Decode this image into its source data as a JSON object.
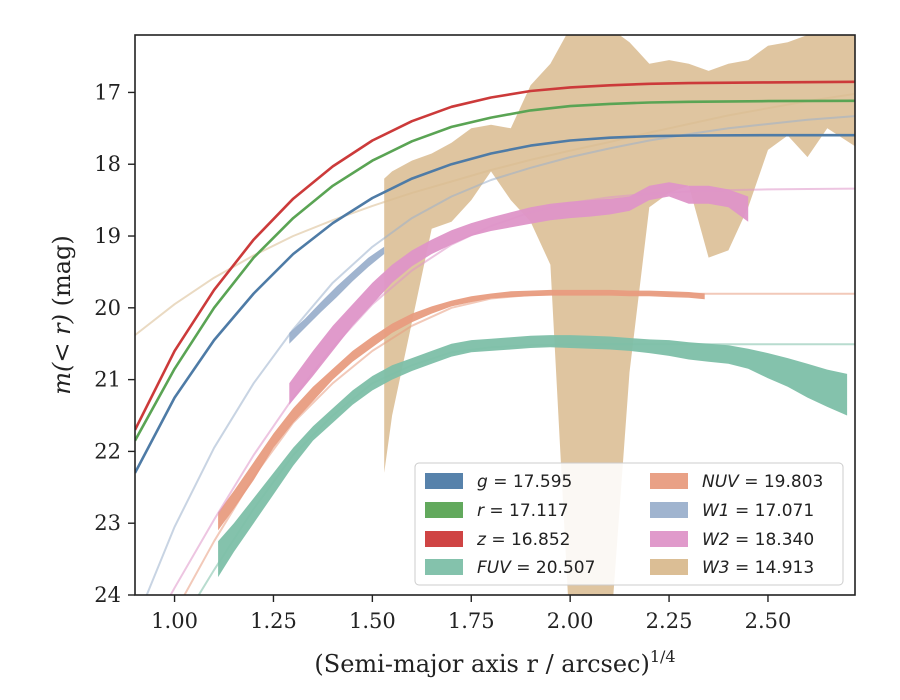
{
  "chart_data": {
    "type": "line",
    "xlabel": "(Semi-major axis r / arcsec)",
    "xlabel_exponent": "1/4",
    "ylabel_prefix": "m(< r)",
    "ylabel_suffix": " (mag)",
    "xlim": [
      0.9,
      2.72
    ],
    "ylim": [
      24,
      16.2
    ],
    "y_inverted": true,
    "x_ticks": [
      1.0,
      1.25,
      1.5,
      1.75,
      2.0,
      2.25,
      2.5
    ],
    "x_tick_labels": [
      "1.00",
      "1.25",
      "1.50",
      "1.75",
      "2.00",
      "2.25",
      "2.50"
    ],
    "y_ticks": [
      17,
      18,
      19,
      20,
      21,
      22,
      23,
      24
    ],
    "y_tick_labels": [
      "17",
      "18",
      "19",
      "20",
      "21",
      "22",
      "23",
      "24"
    ],
    "grid": false,
    "legend_placement": "lower-right",
    "legend_columns": 2,
    "series": [
      {
        "key": "W3",
        "name": "W3 = 14.913",
        "color": "#d9bb8f",
        "model": [
          [
            0.9,
            20.38
          ],
          [
            1.0,
            19.95
          ],
          [
            1.1,
            19.58
          ],
          [
            1.2,
            19.27
          ],
          [
            1.3,
            19.0
          ],
          [
            1.4,
            18.78
          ],
          [
            1.5,
            18.58
          ],
          [
            1.6,
            18.4
          ],
          [
            1.7,
            18.24
          ],
          [
            1.8,
            18.08
          ],
          [
            1.9,
            17.94
          ],
          [
            2.0,
            17.81
          ],
          [
            2.1,
            17.69
          ],
          [
            2.2,
            17.56
          ],
          [
            2.3,
            17.44
          ],
          [
            2.4,
            17.32
          ],
          [
            2.5,
            17.22
          ],
          [
            2.6,
            17.12
          ],
          [
            2.72,
            17.02
          ]
        ],
        "band_x": [
          1.53,
          1.55,
          1.6,
          1.65,
          1.7,
          1.75,
          1.8,
          1.85,
          1.9,
          1.95,
          2.0,
          2.05,
          2.1,
          2.15,
          2.2,
          2.25,
          2.3,
          2.35,
          2.4,
          2.45,
          2.5,
          2.55,
          2.6,
          2.65,
          2.72
        ],
        "band_hi": [
          18.2,
          18.1,
          17.95,
          17.85,
          17.7,
          17.5,
          17.45,
          17.5,
          16.9,
          16.6,
          16.1,
          16.1,
          16.1,
          16.3,
          16.6,
          16.55,
          16.6,
          16.7,
          16.6,
          16.55,
          16.35,
          16.3,
          16.2,
          16.2,
          16.15
        ],
        "band_lo": [
          22.3,
          21.5,
          20.2,
          18.9,
          18.8,
          18.5,
          18.1,
          18.5,
          18.8,
          19.4,
          24.6,
          24.8,
          24.7,
          20.9,
          18.6,
          18.4,
          18.3,
          19.3,
          19.2,
          18.6,
          17.8,
          17.6,
          17.9,
          17.5,
          17.75
        ]
      },
      {
        "key": "FUV",
        "name": "FUV = 20.507",
        "color": "#7dbfa8",
        "model": [
          [
            0.9,
            25.2
          ],
          [
            1.0,
            24.55
          ],
          [
            1.1,
            23.65
          ],
          [
            1.2,
            22.8
          ],
          [
            1.3,
            22.05
          ],
          [
            1.4,
            21.5
          ],
          [
            1.5,
            21.05
          ],
          [
            1.6,
            20.8
          ],
          [
            1.7,
            20.62
          ],
          [
            1.8,
            20.55
          ],
          [
            1.9,
            20.52
          ],
          [
            2.0,
            20.51
          ],
          [
            2.2,
            20.507
          ],
          [
            2.4,
            20.507
          ],
          [
            2.72,
            20.507
          ]
        ],
        "band_x": [
          1.11,
          1.15,
          1.2,
          1.25,
          1.3,
          1.35,
          1.4,
          1.45,
          1.5,
          1.55,
          1.6,
          1.65,
          1.7,
          1.75,
          1.8,
          1.85,
          1.9,
          1.95,
          2.0,
          2.05,
          2.1,
          2.15,
          2.2,
          2.25,
          2.3,
          2.35,
          2.4,
          2.45,
          2.5,
          2.55,
          2.6,
          2.65,
          2.7
        ],
        "band_hi": [
          23.25,
          23.0,
          22.65,
          22.3,
          21.95,
          21.65,
          21.4,
          21.15,
          20.95,
          20.8,
          20.7,
          20.6,
          20.5,
          20.45,
          20.43,
          20.41,
          20.39,
          20.38,
          20.38,
          20.39,
          20.4,
          20.42,
          20.44,
          20.45,
          20.48,
          20.5,
          20.52,
          20.57,
          20.63,
          20.7,
          20.78,
          20.86,
          20.92
        ],
        "band_lo": [
          23.75,
          23.4,
          23.0,
          22.6,
          22.2,
          21.85,
          21.6,
          21.35,
          21.15,
          21.0,
          20.88,
          20.78,
          20.68,
          20.62,
          20.6,
          20.58,
          20.56,
          20.55,
          20.56,
          20.57,
          20.58,
          20.6,
          20.63,
          20.67,
          20.72,
          20.75,
          20.78,
          20.85,
          20.98,
          21.1,
          21.25,
          21.38,
          21.5
        ]
      },
      {
        "key": "NUV",
        "name": "NUV = 19.803",
        "color": "#e89c7f",
        "model": [
          [
            0.9,
            25.0
          ],
          [
            1.0,
            24.25
          ],
          [
            1.1,
            23.25
          ],
          [
            1.2,
            22.35
          ],
          [
            1.3,
            21.6
          ],
          [
            1.4,
            21.05
          ],
          [
            1.5,
            20.6
          ],
          [
            1.6,
            20.25
          ],
          [
            1.7,
            20.0
          ],
          [
            1.8,
            19.87
          ],
          [
            1.9,
            19.82
          ],
          [
            2.0,
            19.806
          ],
          [
            2.2,
            19.803
          ],
          [
            2.72,
            19.803
          ]
        ],
        "band_x": [
          1.11,
          1.15,
          1.2,
          1.25,
          1.3,
          1.35,
          1.4,
          1.45,
          1.5,
          1.55,
          1.6,
          1.65,
          1.7,
          1.75,
          1.8,
          1.85,
          1.9,
          1.95,
          2.0,
          2.05,
          2.1,
          2.15,
          2.2,
          2.25,
          2.3,
          2.34
        ],
        "band_hi": [
          22.85,
          22.55,
          22.15,
          21.75,
          21.4,
          21.1,
          20.85,
          20.6,
          20.4,
          20.22,
          20.08,
          19.98,
          19.9,
          19.84,
          19.8,
          19.77,
          19.76,
          19.75,
          19.75,
          19.75,
          19.75,
          19.76,
          19.76,
          19.77,
          19.78,
          19.8
        ],
        "band_lo": [
          23.1,
          22.8,
          22.4,
          21.95,
          21.6,
          21.3,
          21.0,
          20.75,
          20.55,
          20.35,
          20.2,
          20.08,
          19.98,
          19.92,
          19.87,
          19.85,
          19.84,
          19.83,
          19.83,
          19.83,
          19.83,
          19.84,
          19.84,
          19.85,
          19.86,
          19.88
        ]
      },
      {
        "key": "W2",
        "name": "W2 = 18.340",
        "color": "#de95c8",
        "model": [
          [
            0.9,
            24.9
          ],
          [
            1.0,
            23.9
          ],
          [
            1.1,
            22.95
          ],
          [
            1.2,
            22.05
          ],
          [
            1.3,
            21.25
          ],
          [
            1.4,
            20.55
          ],
          [
            1.5,
            19.95
          ],
          [
            1.6,
            19.48
          ],
          [
            1.7,
            19.12
          ],
          [
            1.8,
            18.86
          ],
          [
            1.9,
            18.67
          ],
          [
            2.0,
            18.54
          ],
          [
            2.1,
            18.46
          ],
          [
            2.2,
            18.41
          ],
          [
            2.3,
            18.38
          ],
          [
            2.4,
            18.36
          ],
          [
            2.5,
            18.35
          ],
          [
            2.6,
            18.345
          ],
          [
            2.72,
            18.34
          ]
        ],
        "band_x": [
          1.29,
          1.35,
          1.4,
          1.45,
          1.5,
          1.55,
          1.6,
          1.65,
          1.7,
          1.75,
          1.8,
          1.85,
          1.9,
          1.95,
          2.0,
          2.05,
          2.1,
          2.15,
          2.2,
          2.25,
          2.3,
          2.35,
          2.4,
          2.45
        ],
        "band_hi": [
          21.05,
          20.6,
          20.25,
          19.95,
          19.65,
          19.4,
          19.2,
          19.05,
          18.92,
          18.82,
          18.74,
          18.67,
          18.6,
          18.55,
          18.52,
          18.5,
          18.48,
          18.45,
          18.3,
          18.25,
          18.3,
          18.3,
          18.35,
          18.45
        ],
        "band_lo": [
          21.35,
          20.95,
          20.6,
          20.25,
          19.95,
          19.65,
          19.42,
          19.25,
          19.12,
          19.0,
          18.93,
          18.88,
          18.83,
          18.78,
          18.75,
          18.73,
          18.7,
          18.65,
          18.5,
          18.45,
          18.55,
          18.55,
          18.6,
          18.8
        ]
      },
      {
        "key": "W1",
        "name": "W1 = 17.071",
        "color": "#9bb0cc",
        "model": [
          [
            0.9,
            24.4
          ],
          [
            1.0,
            23.05
          ],
          [
            1.1,
            21.95
          ],
          [
            1.2,
            21.05
          ],
          [
            1.3,
            20.3
          ],
          [
            1.4,
            19.65
          ],
          [
            1.5,
            19.15
          ],
          [
            1.6,
            18.75
          ],
          [
            1.7,
            18.45
          ],
          [
            1.8,
            18.22
          ],
          [
            1.9,
            18.05
          ],
          [
            2.0,
            17.9
          ],
          [
            2.1,
            17.78
          ],
          [
            2.2,
            17.67
          ],
          [
            2.3,
            17.58
          ],
          [
            2.4,
            17.5
          ],
          [
            2.5,
            17.44
          ],
          [
            2.6,
            17.38
          ],
          [
            2.72,
            17.33
          ]
        ],
        "band_x": [
          1.29,
          1.33,
          1.37,
          1.41,
          1.45,
          1.49,
          1.53
        ],
        "band_hi": [
          20.35,
          20.15,
          19.92,
          19.7,
          19.5,
          19.3,
          19.15
        ],
        "band_lo": [
          20.5,
          20.28,
          20.06,
          19.85,
          19.63,
          19.43,
          19.25
        ]
      },
      {
        "key": "g",
        "name": "g = 17.595",
        "color": "#4e7ba6",
        "model": [
          [
            0.9,
            22.3
          ],
          [
            1.0,
            21.25
          ],
          [
            1.1,
            20.45
          ],
          [
            1.2,
            19.8
          ],
          [
            1.3,
            19.25
          ],
          [
            1.4,
            18.82
          ],
          [
            1.5,
            18.47
          ],
          [
            1.6,
            18.2
          ],
          [
            1.7,
            18.0
          ],
          [
            1.8,
            17.85
          ],
          [
            1.9,
            17.74
          ],
          [
            2.0,
            17.67
          ],
          [
            2.1,
            17.63
          ],
          [
            2.2,
            17.61
          ],
          [
            2.3,
            17.6
          ],
          [
            2.5,
            17.596
          ],
          [
            2.72,
            17.595
          ]
        ],
        "band_x": [],
        "band_hi": [],
        "band_lo": []
      },
      {
        "key": "r",
        "name": "r = 17.117",
        "color": "#5aa454",
        "model": [
          [
            0.9,
            21.85
          ],
          [
            1.0,
            20.85
          ],
          [
            1.1,
            20.0
          ],
          [
            1.2,
            19.3
          ],
          [
            1.3,
            18.75
          ],
          [
            1.4,
            18.3
          ],
          [
            1.5,
            17.95
          ],
          [
            1.6,
            17.68
          ],
          [
            1.7,
            17.48
          ],
          [
            1.8,
            17.35
          ],
          [
            1.9,
            17.25
          ],
          [
            2.0,
            17.19
          ],
          [
            2.1,
            17.16
          ],
          [
            2.2,
            17.14
          ],
          [
            2.3,
            17.13
          ],
          [
            2.5,
            17.12
          ],
          [
            2.72,
            17.117
          ]
        ],
        "band_x": [],
        "band_hi": [],
        "band_lo": []
      },
      {
        "key": "z",
        "name": "z = 16.852",
        "color": "#cc3a3a",
        "model": [
          [
            0.9,
            21.7
          ],
          [
            1.0,
            20.6
          ],
          [
            1.1,
            19.75
          ],
          [
            1.2,
            19.05
          ],
          [
            1.3,
            18.48
          ],
          [
            1.4,
            18.03
          ],
          [
            1.5,
            17.67
          ],
          [
            1.6,
            17.4
          ],
          [
            1.7,
            17.2
          ],
          [
            1.8,
            17.07
          ],
          [
            1.9,
            16.98
          ],
          [
            2.0,
            16.93
          ],
          [
            2.1,
            16.9
          ],
          [
            2.2,
            16.88
          ],
          [
            2.3,
            16.87
          ],
          [
            2.5,
            16.86
          ],
          [
            2.72,
            16.852
          ]
        ],
        "band_x": [],
        "band_hi": [],
        "band_lo": []
      }
    ],
    "legend": [
      {
        "key": "g",
        "var": "g",
        "value": " = 17.595",
        "color": "#4e7ba6"
      },
      {
        "key": "r",
        "var": "r",
        "value": " = 17.117",
        "color": "#5aa454"
      },
      {
        "key": "z",
        "var": "z",
        "value": " = 16.852",
        "color": "#cc3a3a"
      },
      {
        "key": "FUV",
        "var": "FUV",
        "value": " = 20.507",
        "color": "#7dbfa8"
      },
      {
        "key": "NUV",
        "var": "NUV",
        "value": " = 19.803",
        "color": "#e89c7f"
      },
      {
        "key": "W1",
        "var": "W1",
        "value": " = 17.071",
        "color": "#9bb0cc"
      },
      {
        "key": "W2",
        "var": "W2",
        "value": " = 18.340",
        "color": "#de95c8"
      },
      {
        "key": "W3",
        "var": "W3",
        "value": " = 14.913",
        "color": "#d9bb8f"
      }
    ]
  }
}
